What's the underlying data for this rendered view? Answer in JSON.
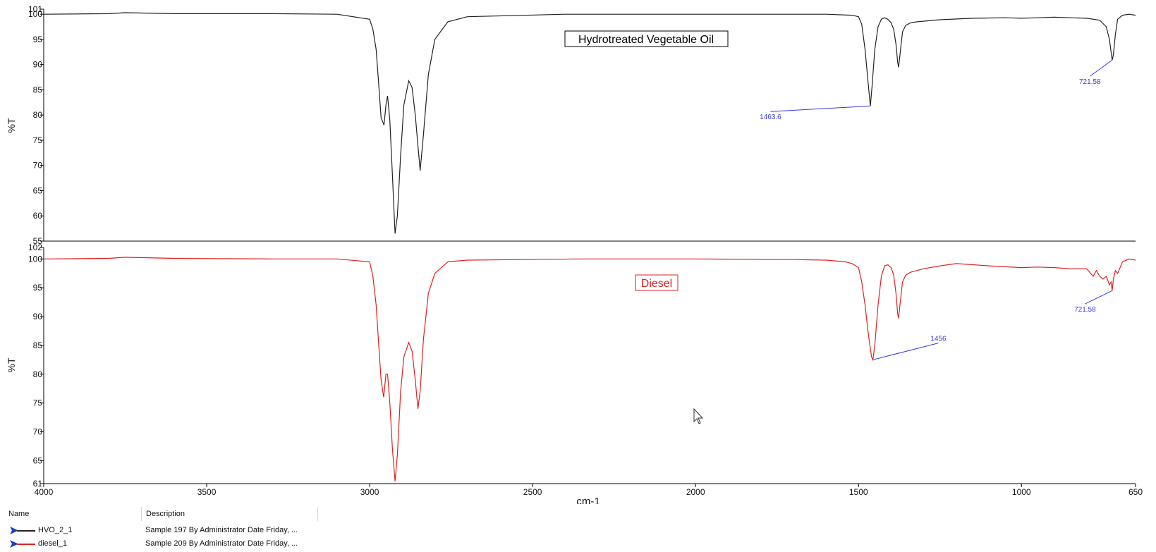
{
  "chart_data": [
    {
      "type": "line",
      "title": "Hydrotreated Vegetable Oil",
      "ylabel": "%T",
      "xlabel": "",
      "xlim": [
        4000,
        650
      ],
      "ylim": [
        55,
        101
      ],
      "yticks": [
        "55",
        "60",
        "65",
        "70",
        "75",
        "80",
        "85",
        "90",
        "95",
        "100",
        "101"
      ],
      "color": "#222222",
      "series": [
        {
          "name": "HVO_2_1",
          "x": [
            4000,
            3800,
            3750,
            3600,
            3300,
            3100,
            3000,
            2990,
            2980,
            2972,
            2965,
            2956,
            2950,
            2945,
            2938,
            2930,
            2922,
            2915,
            2905,
            2895,
            2880,
            2870,
            2860,
            2852,
            2845,
            2835,
            2820,
            2800,
            2760,
            2700,
            2400,
            2000,
            1600,
            1520,
            1500,
            1490,
            1480,
            1470,
            1463.6,
            1458,
            1450,
            1440,
            1430,
            1420,
            1410,
            1400,
            1392,
            1385,
            1380,
            1377,
            1372,
            1365,
            1355,
            1340,
            1320,
            1250,
            1150,
            1050,
            1000,
            950,
            900,
            850,
            800,
            760,
            740,
            730,
            725,
            721.58,
            718,
            712,
            705,
            690,
            670,
            650
          ],
          "y": [
            100,
            100.1,
            100.3,
            100.1,
            100.1,
            100,
            99,
            97,
            93,
            86,
            79.5,
            78,
            82,
            83.8,
            79,
            68,
            56.5,
            60,
            72,
            82,
            86.8,
            85.5,
            80,
            74,
            69,
            76,
            88,
            95,
            98.5,
            99.5,
            100,
            100,
            100,
            99.8,
            99.5,
            98,
            93,
            86,
            81.8,
            86,
            93,
            97.5,
            99,
            99.3,
            99,
            98.3,
            97,
            94,
            90.5,
            89.5,
            92.5,
            96.5,
            97.8,
            98.3,
            98.5,
            98.9,
            99.2,
            99.3,
            99.2,
            99.3,
            99.4,
            99.3,
            99.2,
            98.8,
            97.5,
            95,
            92.5,
            90.9,
            92,
            96,
            99,
            99.8,
            100,
            99.8
          ]
        }
      ],
      "annotations": [
        {
          "text": "1463.6",
          "x": 1463.6,
          "y": 81.8,
          "label_x": 1770,
          "label_y": 80.7
        },
        {
          "text": "721.58",
          "x": 721.58,
          "y": 90.9,
          "label_x": 790,
          "label_y": 87.7
        }
      ]
    },
    {
      "type": "line",
      "title": "Diesel",
      "ylabel": "%T",
      "xlabel": "cm-1",
      "xlim": [
        4000,
        650
      ],
      "ylim": [
        61,
        102
      ],
      "yticks": [
        "61",
        "65",
        "70",
        "75",
        "80",
        "85",
        "90",
        "95",
        "100",
        "102"
      ],
      "xticks": [
        "4000",
        "3500",
        "3000",
        "2500",
        "2000",
        "1500",
        "1000",
        "650"
      ],
      "color": "#e02020",
      "series": [
        {
          "name": "diesel_1",
          "x": [
            4000,
            3800,
            3750,
            3600,
            3300,
            3100,
            3000,
            2990,
            2980,
            2972,
            2965,
            2957,
            2950,
            2945,
            2938,
            2930,
            2922,
            2915,
            2905,
            2895,
            2880,
            2870,
            2860,
            2852,
            2845,
            2835,
            2820,
            2800,
            2760,
            2700,
            2350,
            2000,
            1700,
            1600,
            1540,
            1520,
            1500,
            1490,
            1480,
            1470,
            1460,
            1456,
            1450,
            1440,
            1430,
            1420,
            1410,
            1400,
            1392,
            1385,
            1380,
            1377,
            1372,
            1365,
            1355,
            1340,
            1300,
            1250,
            1200,
            1100,
            1000,
            950,
            900,
            850,
            800,
            780,
            770,
            760,
            750,
            740,
            730,
            725,
            721.58,
            718,
            712,
            705,
            690,
            670,
            650
          ],
          "y": [
            100,
            100.1,
            100.3,
            100.1,
            100,
            100,
            99.5,
            97,
            92,
            85,
            79,
            76,
            80,
            80,
            75,
            67,
            61.4,
            66,
            77,
            83,
            85.5,
            84,
            79,
            74,
            77,
            86,
            94,
            97.5,
            99.5,
            99.8,
            100,
            100,
            99.9,
            99.8,
            99.5,
            99.2,
            98.5,
            96,
            92,
            87,
            83,
            82.5,
            85,
            92,
            97,
            98.8,
            99,
            98.5,
            97.2,
            94,
            90.5,
            89.7,
            92.5,
            96,
            97.2,
            97.7,
            98.3,
            98.8,
            99.2,
            98.8,
            98.5,
            98.6,
            98.5,
            98.3,
            98.3,
            97,
            98,
            97,
            96.5,
            97,
            95.5,
            96,
            94.5,
            96.5,
            98,
            97.5,
            99.5,
            100,
            99.8
          ]
        }
      ],
      "annotations": [
        {
          "text": "1456",
          "x": 1456,
          "y": 82.5,
          "label_x": 1255,
          "label_y": 85.4
        },
        {
          "text": "721.58",
          "x": 721.58,
          "y": 94.5,
          "label_x": 805,
          "label_y": 92.2
        }
      ]
    }
  ],
  "legend_table": {
    "headers": {
      "name": "Name",
      "description": "Description"
    },
    "rows": [
      {
        "name": "HVO_2_1",
        "description": "Sample 197 By Administrator Date Friday, ...",
        "color": "#222222"
      },
      {
        "name": "diesel_1",
        "description": "Sample 209 By Administrator Date Friday, ...",
        "color": "#e02020"
      }
    ]
  },
  "colors": {
    "annotation": "#3535e8",
    "legend_marker": "#1a3fbf"
  }
}
